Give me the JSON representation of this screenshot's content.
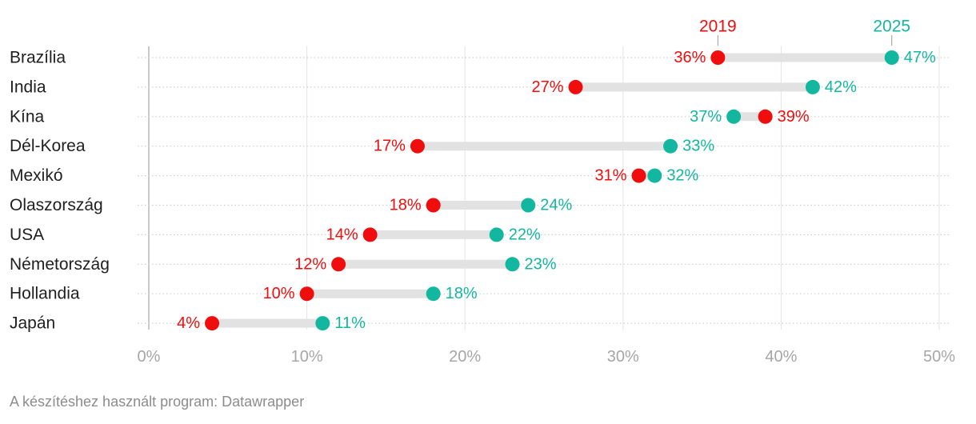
{
  "chart_data": {
    "type": "dumbbell",
    "title": "",
    "xlabel": "",
    "ylabel": "",
    "xlim": [
      0,
      50
    ],
    "x_ticks": [
      0,
      10,
      20,
      30,
      40,
      50
    ],
    "x_tick_labels": [
      "0%",
      "10%",
      "20%",
      "30%",
      "40%",
      "50%"
    ],
    "grid": true,
    "series": [
      {
        "name": "2019",
        "color": "#f00d0d"
      },
      {
        "name": "2025",
        "color": "#13b7a0"
      }
    ],
    "categories": [
      "Brazília",
      "India",
      "Kína",
      "Dél-Korea",
      "Mexikó",
      "Olaszország",
      "USA",
      "Németország",
      "Hollandia",
      "Japán"
    ],
    "rows": [
      {
        "label": "Brazília",
        "v2019": 36,
        "v2025": 47,
        "label2019": "36%",
        "label2025": "47%"
      },
      {
        "label": "India",
        "v2019": 27,
        "v2025": 42,
        "label2019": "27%",
        "label2025": "42%"
      },
      {
        "label": "Kína",
        "v2019": 39,
        "v2025": 37,
        "label2019": "39%",
        "label2025": "37%"
      },
      {
        "label": "Dél-Korea",
        "v2019": 17,
        "v2025": 33,
        "label2019": "17%",
        "label2025": "33%"
      },
      {
        "label": "Mexikó",
        "v2019": 31,
        "v2025": 32,
        "label2019": "31%",
        "label2025": "32%"
      },
      {
        "label": "Olaszország",
        "v2019": 18,
        "v2025": 24,
        "label2019": "18%",
        "label2025": "24%"
      },
      {
        "label": "USA",
        "v2019": 14,
        "v2025": 22,
        "label2019": "14%",
        "label2025": "22%"
      },
      {
        "label": "Németország",
        "v2019": 12,
        "v2025": 23,
        "label2019": "12%",
        "label2025": "23%"
      },
      {
        "label": "Hollandia",
        "v2019": 10,
        "v2025": 18,
        "label2019": "10%",
        "label2025": "18%"
      },
      {
        "label": "Japán",
        "v2019": 4,
        "v2025": 11,
        "label2019": "4%",
        "label2025": "11%"
      }
    ]
  },
  "footer": {
    "note": "A készítéshez használt program: Datawrapper"
  }
}
